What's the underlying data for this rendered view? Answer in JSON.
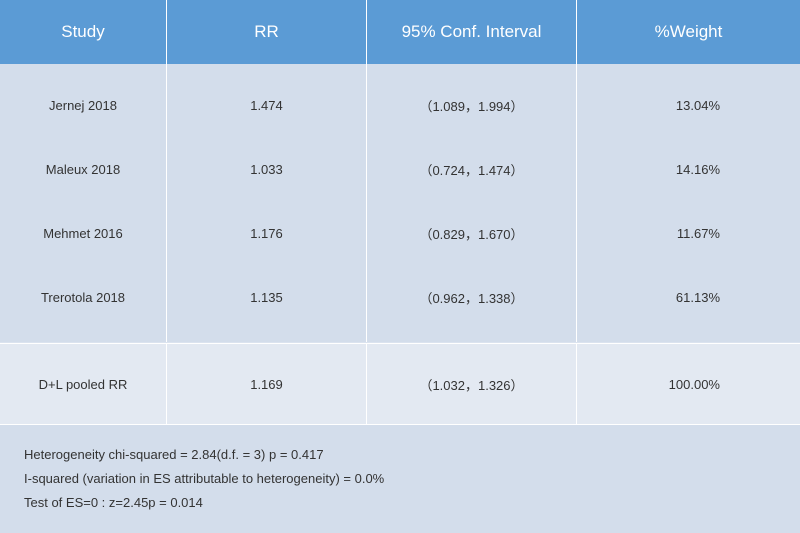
{
  "headers": [
    "Study",
    "RR",
    "95% Conf. Interval",
    "%Weight"
  ],
  "rows": [
    {
      "study": "Jernej 2018",
      "rr": "1.474",
      "ci": "（1.089，1.994）",
      "weight": "13.04%"
    },
    {
      "study": "Maleux 2018",
      "rr": "1.033",
      "ci": "（0.724，1.474）",
      "weight": "14.16%"
    },
    {
      "study": "Mehmet 2016",
      "rr": "1.176",
      "ci": "（0.829，1.670）",
      "weight": "11.67%"
    },
    {
      "study": "Trerotola 2018",
      "rr": "1.135",
      "ci": "（0.962，1.338）",
      "weight": "61.13%"
    }
  ],
  "pooled": {
    "study": "D+L pooled RR",
    "rr": "1.169",
    "ci": "（1.032，1.326）",
    "weight": "100.00%"
  },
  "footer": [
    "Heterogeneity chi-squared = 2.84(d.f. = 3) p = 0.417",
    "I-squared (variation in ES attributable to heterogeneity) = 0.0%",
    "Test of ES=0 : z=2.45p = 0.014"
  ],
  "colors": {
    "header": "#5b9bd5",
    "body": "#d3ddeb",
    "pooled": "#e3e9f2"
  }
}
